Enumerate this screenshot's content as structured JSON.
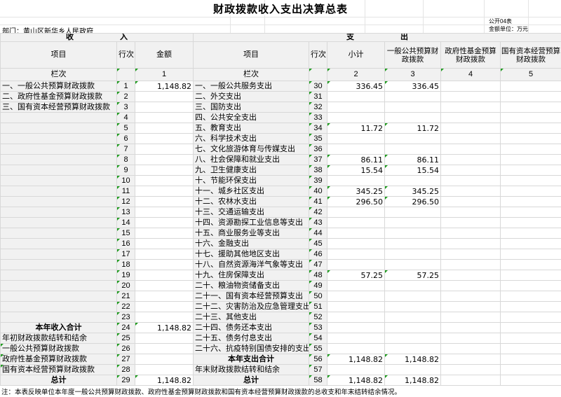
{
  "meta": {
    "title": "财政拨款收入支出决算总表",
    "doc_no": "公开04表",
    "department": "部门：黄山区新华乡人民政府",
    "unit": "金额单位：万元",
    "note": "注：本表反映单位本年度一般公共预算财政拨款、政府性基金预算财政拨款和国有资本经营预算财政拨款的总收支和年末结转结余情况。"
  },
  "colors": {
    "cell_fill_gray": "#f1f1f1",
    "grid_line": "#d8d8d8",
    "flag_triangle_green": "#1d9b1d"
  },
  "income": {
    "section_label": "收　　　　　　入",
    "headers": [
      "项目",
      "行次",
      "金额"
    ],
    "lane_label": "栏次",
    "lane_no": "1",
    "rows": [
      {
        "no": "1",
        "name": "一、一般公共预算财政拨款",
        "amt": "1,148.82"
      },
      {
        "no": "2",
        "name": "二、政府性基金预算财政拨款",
        "amt": ""
      },
      {
        "no": "3",
        "name": "三、国有资本经营预算财政拨款",
        "amt": ""
      },
      {
        "no": "4",
        "name": "",
        "amt": ""
      },
      {
        "no": "5",
        "name": "",
        "amt": ""
      },
      {
        "no": "6",
        "name": "",
        "amt": ""
      },
      {
        "no": "7",
        "name": "",
        "amt": ""
      },
      {
        "no": "8",
        "name": "",
        "amt": ""
      },
      {
        "no": "9",
        "name": "",
        "amt": ""
      },
      {
        "no": "10",
        "name": "",
        "amt": ""
      },
      {
        "no": "11",
        "name": "",
        "amt": ""
      },
      {
        "no": "12",
        "name": "",
        "amt": ""
      },
      {
        "no": "13",
        "name": "",
        "amt": ""
      },
      {
        "no": "14",
        "name": "",
        "amt": ""
      },
      {
        "no": "15",
        "name": "",
        "amt": ""
      },
      {
        "no": "16",
        "name": "",
        "amt": ""
      },
      {
        "no": "17",
        "name": "",
        "amt": ""
      },
      {
        "no": "18",
        "name": "",
        "amt": ""
      },
      {
        "no": "19",
        "name": "",
        "amt": ""
      },
      {
        "no": "20",
        "name": "",
        "amt": ""
      },
      {
        "no": "21",
        "name": "",
        "amt": ""
      },
      {
        "no": "22",
        "name": "",
        "amt": ""
      },
      {
        "no": "23",
        "name": "",
        "amt": ""
      },
      {
        "no": "24",
        "name": "本年收入合计",
        "amt": "1,148.82",
        "style": "total"
      },
      {
        "no": "25",
        "name": "年初财政拨款结转和结余",
        "amt": ""
      },
      {
        "no": "26",
        "name": "一般公共预算财政拨款",
        "amt": "",
        "indent": true,
        "tri_name": true
      },
      {
        "no": "27",
        "name": "政府性基金预算财政拨款",
        "amt": "",
        "indent": true,
        "tri_name": true
      },
      {
        "no": "28",
        "name": "国有资本经营预算财政拨款",
        "amt": "",
        "indent": true,
        "tri_name": true
      },
      {
        "no": "29",
        "name": "总计",
        "amt": "1,148.82",
        "style": "total"
      }
    ]
  },
  "expense": {
    "section_label": "支　　　　　　出",
    "headers": [
      "项目",
      "行次",
      "小计",
      "一般公共预算财政拨款",
      "政府性基金预算财政拨款",
      "国有资本经营预算财政拨款"
    ],
    "lane_label": "栏次",
    "lane_nos": [
      "2",
      "3",
      "4",
      "5"
    ],
    "rows": [
      {
        "no": "30",
        "name": "一、一般公共服务支出",
        "sub": "336.45",
        "gen": "336.45",
        "fund": "",
        "cap": ""
      },
      {
        "no": "31",
        "name": "二、外交支出",
        "sub": "",
        "gen": "",
        "fund": "",
        "cap": ""
      },
      {
        "no": "32",
        "name": "三、国防支出",
        "sub": "",
        "gen": "",
        "fund": "",
        "cap": ""
      },
      {
        "no": "33",
        "name": "四、公共安全支出",
        "sub": "",
        "gen": "",
        "fund": "",
        "cap": ""
      },
      {
        "no": "34",
        "name": "五、教育支出",
        "sub": "11.72",
        "gen": "11.72",
        "fund": "",
        "cap": ""
      },
      {
        "no": "35",
        "name": "六、科学技术支出",
        "sub": "",
        "gen": "",
        "fund": "",
        "cap": ""
      },
      {
        "no": "36",
        "name": "七、文化旅游体育与传媒支出",
        "sub": "",
        "gen": "",
        "fund": "",
        "cap": ""
      },
      {
        "no": "37",
        "name": "八、社会保障和就业支出",
        "sub": "86.11",
        "gen": "86.11",
        "fund": "",
        "cap": ""
      },
      {
        "no": "38",
        "name": "九、卫生健康支出",
        "sub": "15.54",
        "gen": "15.54",
        "fund": "",
        "cap": ""
      },
      {
        "no": "39",
        "name": "十、节能环保支出",
        "sub": "",
        "gen": "",
        "fund": "",
        "cap": ""
      },
      {
        "no": "40",
        "name": "十一、城乡社区支出",
        "sub": "345.25",
        "gen": "345.25",
        "fund": "",
        "cap": ""
      },
      {
        "no": "41",
        "name": "十二、农林水支出",
        "sub": "296.50",
        "gen": "296.50",
        "fund": "",
        "cap": ""
      },
      {
        "no": "42",
        "name": "十三、交通运输支出",
        "sub": "",
        "gen": "",
        "fund": "",
        "cap": ""
      },
      {
        "no": "43",
        "name": "十四、资源勘探工业信息等支出",
        "sub": "",
        "gen": "",
        "fund": "",
        "cap": ""
      },
      {
        "no": "44",
        "name": "十五、商业服务业等支出",
        "sub": "",
        "gen": "",
        "fund": "",
        "cap": ""
      },
      {
        "no": "45",
        "name": "十六、金融支出",
        "sub": "",
        "gen": "",
        "fund": "",
        "cap": ""
      },
      {
        "no": "46",
        "name": "十七、援助其他地区支出",
        "sub": "",
        "gen": "",
        "fund": "",
        "cap": ""
      },
      {
        "no": "47",
        "name": "十八、自然资源海洋气象等支出",
        "sub": "",
        "gen": "",
        "fund": "",
        "cap": ""
      },
      {
        "no": "48",
        "name": "十九、住房保障支出",
        "sub": "57.25",
        "gen": "57.25",
        "fund": "",
        "cap": ""
      },
      {
        "no": "49",
        "name": "二十、粮油物资储备支出",
        "sub": "",
        "gen": "",
        "fund": "",
        "cap": ""
      },
      {
        "no": "50",
        "name": "二十一、国有资本经营预算支出",
        "sub": "",
        "gen": "",
        "fund": "",
        "cap": ""
      },
      {
        "no": "51",
        "name": "二十二、灾害防治及应急管理支出",
        "sub": "",
        "gen": "",
        "fund": "",
        "cap": ""
      },
      {
        "no": "52",
        "name": "二十三、其他支出",
        "sub": "",
        "gen": "",
        "fund": "",
        "cap": ""
      },
      {
        "no": "53",
        "name": "二十四、债务还本支出",
        "sub": "",
        "gen": "",
        "fund": "",
        "cap": ""
      },
      {
        "no": "54",
        "name": "二十五、债务付息支出",
        "sub": "",
        "gen": "",
        "fund": "",
        "cap": ""
      },
      {
        "no": "55",
        "name": "二十六、抗疫特别国债安排的支出",
        "sub": "",
        "gen": "",
        "fund": "",
        "cap": ""
      },
      {
        "no": "56",
        "name": "本年支出合计",
        "sub": "1,148.82",
        "gen": "1,148.82",
        "fund": "",
        "cap": "",
        "style": "total"
      },
      {
        "no": "57",
        "name": "年末财政拨款结转和结余",
        "sub": "",
        "gen": "",
        "fund": "",
        "cap": ""
      },
      {
        "no": "58",
        "name": "总计",
        "sub": "1,148.82",
        "gen": "1,148.82",
        "fund": "",
        "cap": "",
        "style": "total"
      }
    ]
  }
}
